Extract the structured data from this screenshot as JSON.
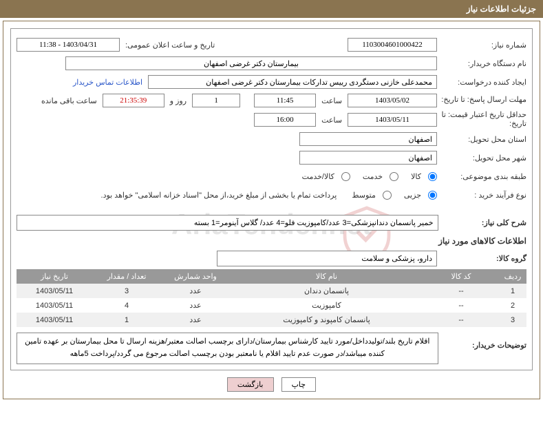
{
  "header": {
    "title": "جزئیات اطلاعات نیاز"
  },
  "fields": {
    "need_no_label": "شماره نیاز:",
    "need_no": "1103004601000422",
    "announce_label": "تاریخ و ساعت اعلان عمومی:",
    "announce_value": "1403/04/31 - 11:38",
    "buyer_org_label": "نام دستگاه خریدار:",
    "buyer_org": "بیمارستان دکتر غرضی اصفهان",
    "requester_label": "ایجاد کننده درخواست:",
    "requester": "محمدعلی خازنی دستگردی رییس تدارکات بیمارستان دکتر غرضی اصفهان",
    "contact_link": "اطلاعات تماس خریدار",
    "deadline_label": "مهلت ارسال پاسخ: تا تاریخ:",
    "deadline_date": "1403/05/02",
    "time_label": "ساعت",
    "deadline_time": "11:45",
    "days_value": "1",
    "days_and_label": "روز و",
    "countdown": "21:35:39",
    "remaining_label": "ساعت باقی مانده",
    "validity_label": "حداقل تاریخ اعتبار قیمت: تا تاریخ:",
    "validity_date": "1403/05/11",
    "validity_time": "16:00",
    "province_label": "استان محل تحویل:",
    "province": "اصفهان",
    "city_label": "شهر محل تحویل:",
    "city": "اصفهان",
    "category_label": "طبقه بندی موضوعی:",
    "cat_goods": "کالا",
    "cat_service": "خدمت",
    "cat_both": "کالا/خدمت",
    "process_label": "نوع فرآیند خرید :",
    "proc_partial": "جزیی",
    "proc_medium": "متوسط",
    "process_note": "پرداخت تمام یا بخشی از مبلغ خرید،از محل \"اسناد خزانه اسلامی\" خواهد بود.",
    "summary_label": "شرح کلی نیاز:",
    "summary": "خمیر پانسمان دندانپزشکی=3 عدد/کامپوزیت فلو=4 عدد/ گلاس آینومر=1 بسته",
    "items_title": "اطلاعات کالاهای مورد نیاز",
    "group_label": "گروه کالا:",
    "group_value": "دارو، پزشکی و سلامت",
    "explain_label": "توضیحات خریدار:",
    "explain_text": "اقلام تاریخ بلند/تولیدداخل/مورد تایید کارشناس بیمارستان/دارای برچسب اصالت معتبر/هزینه ارسال تا محل بیمارستان بر عهده تامین کننده میباشد/در صورت عدم تایید اقلام یا نامعتبر بودن برچسب اصالت مرجوع می گردد/پرداخت 5ماهه"
  },
  "table": {
    "headers": {
      "idx": "ردیف",
      "code": "کد کالا",
      "name": "نام کالا",
      "unit": "واحد شمارش",
      "qty": "تعداد / مقدار",
      "date": "تاریخ نیاز"
    },
    "rows": [
      {
        "idx": "1",
        "code": "--",
        "name": "پانسمان دندان",
        "unit": "عدد",
        "qty": "3",
        "date": "1403/05/11"
      },
      {
        "idx": "2",
        "code": "--",
        "name": "کامپوزیت",
        "unit": "عدد",
        "qty": "4",
        "date": "1403/05/11"
      },
      {
        "idx": "3",
        "code": "--",
        "name": "پانسمان کامپوند و کامپوزیت",
        "unit": "عدد",
        "qty": "1",
        "date": "1403/05/11"
      }
    ]
  },
  "buttons": {
    "print": "چاپ",
    "back": "بازگشت"
  },
  "watermark": "AriaTender.net"
}
